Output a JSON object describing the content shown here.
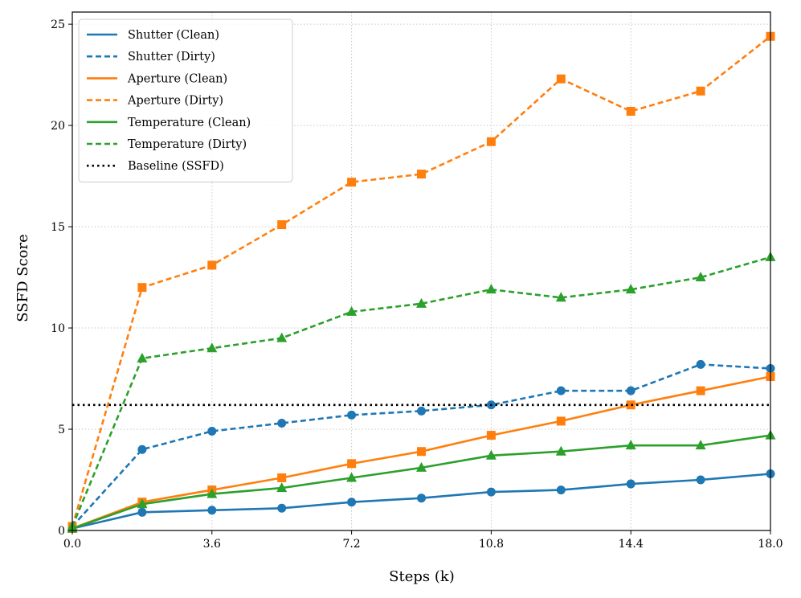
{
  "chart_data": {
    "type": "line",
    "title": "",
    "xlabel": "Steps (k)",
    "ylabel": "SSFD Score",
    "xlim": [
      0,
      18
    ],
    "ylim": [
      0,
      25.6
    ],
    "grid": true,
    "legend_position": "top-left",
    "x": [
      0,
      1.8,
      3.6,
      5.4,
      7.2,
      9.0,
      10.8,
      12.6,
      14.4,
      16.2,
      18.0
    ],
    "x_ticks": [
      0,
      3.6,
      7.2,
      10.8,
      14.4,
      18.0
    ],
    "x_tick_labels": [
      "0.0",
      "3.6",
      "7.2",
      "10.8",
      "14.4",
      "18.0"
    ],
    "y_ticks": [
      0,
      5,
      10,
      15,
      20,
      25
    ],
    "y_tick_labels": [
      "0",
      "5",
      "10",
      "15",
      "20",
      "25"
    ],
    "series": [
      {
        "name": "Shutter (Clean)",
        "color": "#1f77b4",
        "style": "solid",
        "marker": "circle",
        "values": [
          0.1,
          0.9,
          1.0,
          1.1,
          1.4,
          1.6,
          1.9,
          2.0,
          2.3,
          2.5,
          2.8
        ]
      },
      {
        "name": "Shutter (Dirty)",
        "color": "#1f77b4",
        "style": "dashed",
        "marker": "circle",
        "values": [
          0.2,
          4.0,
          4.9,
          5.3,
          5.7,
          5.9,
          6.2,
          6.9,
          6.9,
          8.2,
          8.0
        ]
      },
      {
        "name": "Aperture (Clean)",
        "color": "#ff7f0e",
        "style": "solid",
        "marker": "square",
        "values": [
          0.1,
          1.4,
          2.0,
          2.6,
          3.3,
          3.9,
          4.7,
          5.4,
          6.2,
          6.9,
          7.6
        ]
      },
      {
        "name": "Aperture (Dirty)",
        "color": "#ff7f0e",
        "style": "dashed",
        "marker": "square",
        "values": [
          0.2,
          12.0,
          13.1,
          15.1,
          17.2,
          17.6,
          19.2,
          22.3,
          20.7,
          21.7,
          24.4
        ]
      },
      {
        "name": "Temperature (Clean)",
        "color": "#2ca02c",
        "style": "solid",
        "marker": "triangle",
        "values": [
          0.1,
          1.3,
          1.8,
          2.1,
          2.6,
          3.1,
          3.7,
          3.9,
          4.2,
          4.2,
          4.7
        ]
      },
      {
        "name": "Temperature (Dirty)",
        "color": "#2ca02c",
        "style": "dashed",
        "marker": "triangle",
        "values": [
          0.2,
          8.5,
          9.0,
          9.5,
          10.8,
          11.2,
          11.9,
          11.5,
          11.9,
          12.5,
          13.5
        ]
      }
    ],
    "baseline": {
      "name": "Baseline (SSFD)",
      "color": "#000000",
      "style": "dotted",
      "value": 6.2
    }
  }
}
